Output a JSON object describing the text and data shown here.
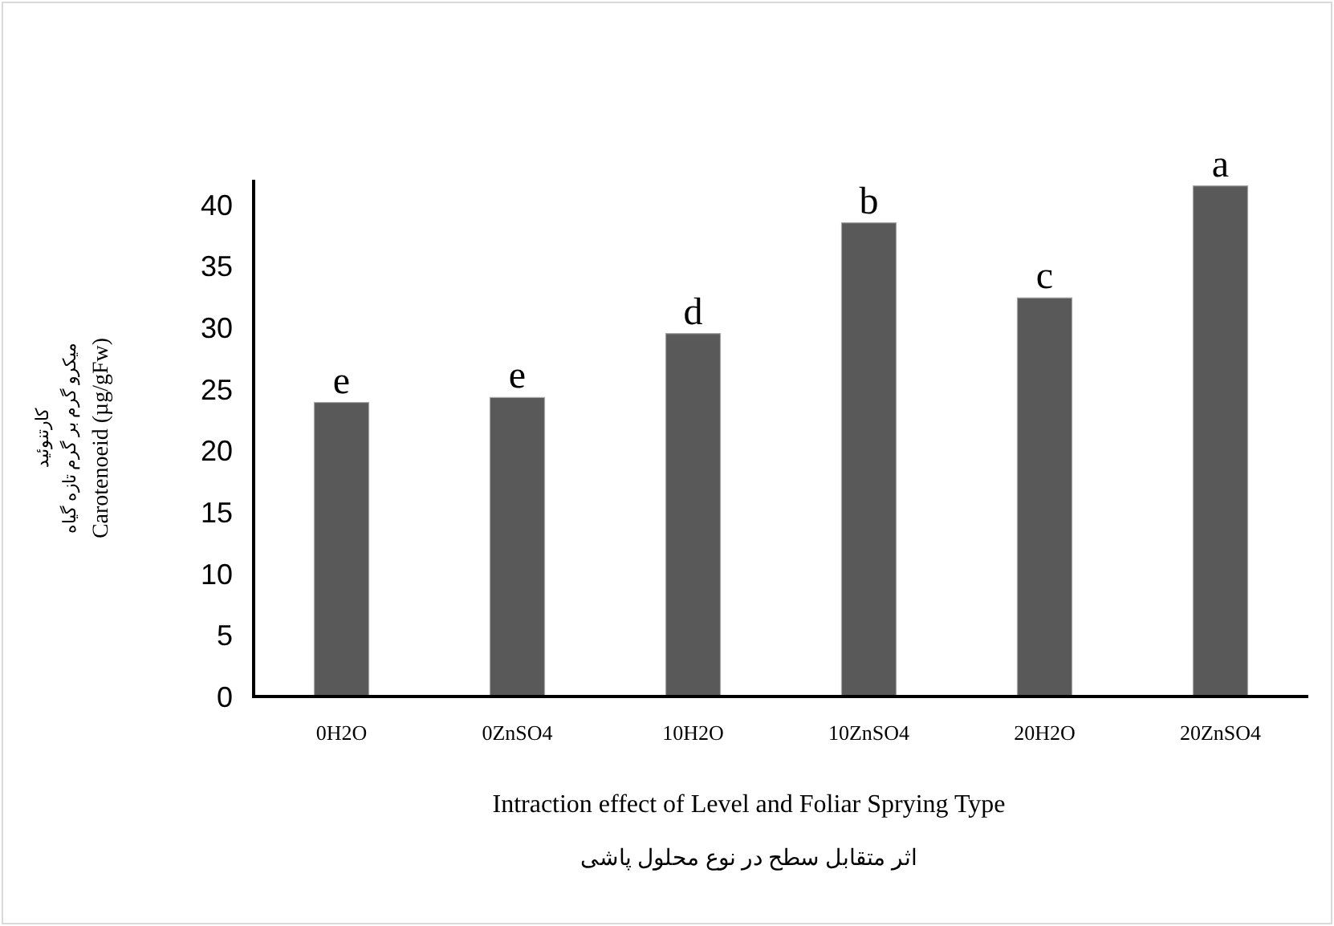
{
  "chart_data": {
    "type": "bar",
    "categories": [
      "0H2O",
      "0ZnSO4",
      "10H2O",
      "10ZnSO4",
      "20H2O",
      "20ZnSO4"
    ],
    "values": [
      23.9,
      24.3,
      29.5,
      38.5,
      32.4,
      41.5
    ],
    "color": "#595959",
    "ylim": [
      0,
      42
    ],
    "yticks": [
      0,
      5,
      10,
      15,
      20,
      25,
      30,
      35,
      40
    ],
    "xlabel": "Intraction effect of Level and Foliar Sprying Type\nاثر متقابل سطح در نوع محلول پاشی",
    "ylabel": "کارتنوئید\nمیکرو گرم بر گرم تازه گیاه\nCarotenoeid (µg/gFw)",
    "annotations": [
      {
        "text": "e",
        "x": "0H2O",
        "y": 23.9
      },
      {
        "text": "e",
        "x": "0ZnSO4",
        "y": 24.3
      },
      {
        "text": "d",
        "x": "10H2O",
        "y": 29.5
      },
      {
        "text": "b",
        "x": "10ZnSO4",
        "y": 38.5
      },
      {
        "text": "c",
        "x": "20H2O",
        "y": 32.4
      },
      {
        "text": "a",
        "x": "20ZnSO4",
        "y": 41.5
      }
    ]
  }
}
